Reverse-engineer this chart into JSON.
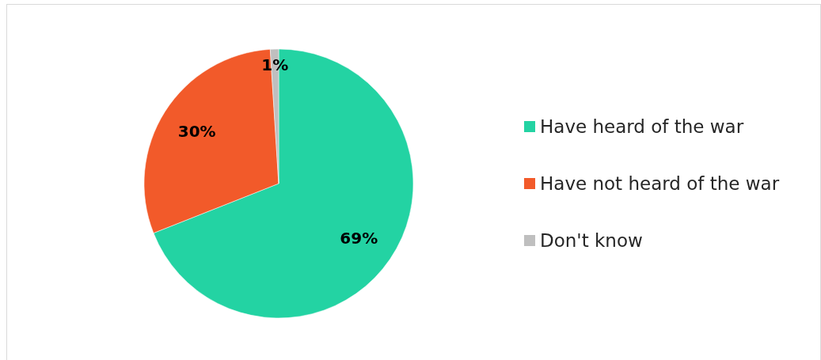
{
  "chart_data": {
    "type": "pie",
    "categories": [
      "Have heard of the war",
      "Have not heard of the war",
      "Don't know"
    ],
    "values": [
      69,
      30,
      1
    ],
    "colors": [
      "#23d3a3",
      "#f25a2a",
      "#bfbfbf"
    ],
    "value_labels": [
      "69%",
      "30%",
      "1%"
    ],
    "legend": "right"
  }
}
